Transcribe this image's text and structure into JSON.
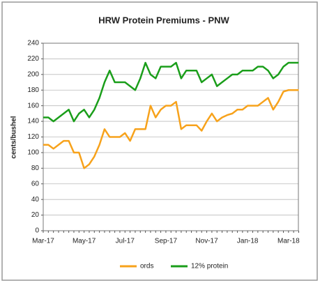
{
  "chart_data": {
    "type": "line",
    "title": "HRW Protein Premiums - PNW",
    "y_label": "cents/bushel",
    "categories": [
      "Mar-17",
      null,
      null,
      null,
      null,
      null,
      null,
      null,
      "May-17",
      null,
      null,
      null,
      null,
      null,
      null,
      null,
      "Jul-17",
      null,
      null,
      null,
      null,
      null,
      null,
      null,
      "Sep-17",
      null,
      null,
      null,
      null,
      null,
      null,
      null,
      "Nov-17",
      null,
      null,
      null,
      null,
      null,
      null,
      null,
      "Jan-18",
      null,
      null,
      null,
      null,
      null,
      null,
      null,
      "Mar-18",
      null,
      null
    ],
    "series": [
      {
        "name": "ords",
        "color": "#f7a21b",
        "values": [
          110,
          110,
          105,
          110,
          115,
          115,
          100,
          100,
          80,
          85,
          95,
          110,
          130,
          120,
          120,
          120,
          125,
          115,
          130,
          130,
          130,
          160,
          145,
          155,
          160,
          160,
          165,
          130,
          135,
          135,
          135,
          128,
          140,
          150,
          140,
          145,
          148,
          150,
          155,
          155,
          160,
          160,
          160,
          165,
          170,
          155,
          165,
          178,
          180,
          180,
          180
        ]
      },
      {
        "name": "12% protein",
        "color": "#1a9e1a",
        "values": [
          145,
          145,
          140,
          145,
          150,
          155,
          140,
          150,
          155,
          145,
          155,
          170,
          190,
          205,
          190,
          190,
          190,
          185,
          180,
          195,
          215,
          200,
          195,
          210,
          210,
          210,
          215,
          195,
          205,
          205,
          205,
          190,
          195,
          200,
          185,
          190,
          195,
          200,
          200,
          205,
          205,
          205,
          210,
          210,
          205,
          195,
          200,
          210,
          215,
          215,
          215
        ]
      }
    ],
    "ylim": [
      0,
      240
    ],
    "yticks": [
      0,
      20,
      40,
      60,
      80,
      100,
      120,
      140,
      160,
      180,
      200,
      220,
      240
    ],
    "grid": true,
    "legend": "bottom"
  }
}
